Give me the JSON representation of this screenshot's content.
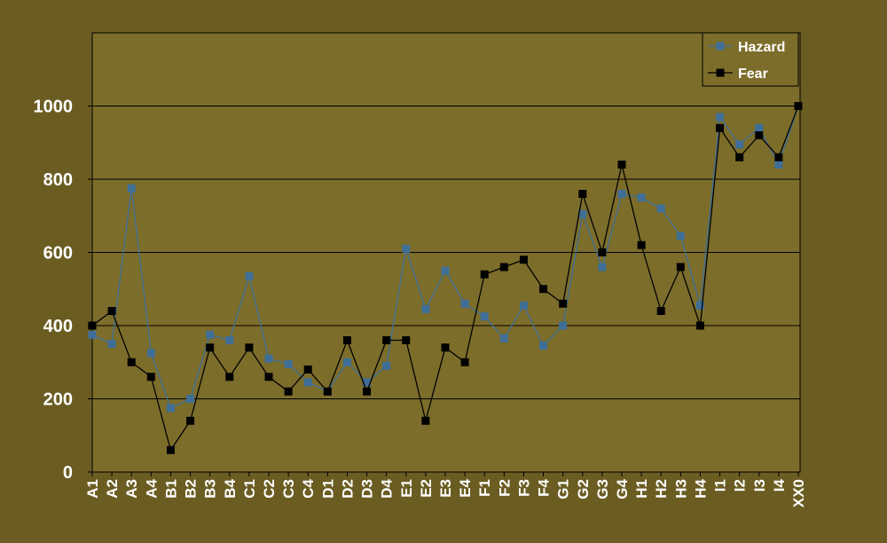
{
  "chart_data": {
    "type": "line",
    "categories": [
      "A1",
      "A2",
      "A3",
      "A4",
      "B1",
      "B2",
      "B3",
      "B4",
      "C1",
      "C2",
      "C3",
      "C4",
      "D1",
      "D2",
      "D3",
      "D4",
      "E1",
      "E2",
      "E3",
      "E4",
      "F1",
      "F2",
      "F3",
      "F4",
      "G1",
      "G2",
      "G3",
      "G4",
      "H1",
      "H2",
      "H3",
      "H4",
      "I1",
      "I2",
      "I3",
      "I4",
      "XX0"
    ],
    "series": [
      {
        "name": "Hazard",
        "color": "#3f6f98",
        "values": [
          375,
          350,
          775,
          325,
          175,
          200,
          375,
          360,
          535,
          310,
          295,
          245,
          220,
          300,
          245,
          290,
          610,
          445,
          550,
          460,
          425,
          365,
          455,
          345,
          400,
          705,
          560,
          760,
          750,
          720,
          645,
          455,
          970,
          895,
          940,
          840,
          1000
        ]
      },
      {
        "name": "Fear",
        "color": "#000000",
        "values": [
          400,
          440,
          300,
          260,
          60,
          140,
          340,
          260,
          340,
          260,
          220,
          280,
          220,
          360,
          220,
          360,
          360,
          140,
          340,
          300,
          540,
          560,
          580,
          500,
          460,
          760,
          600,
          840,
          620,
          440,
          560,
          400,
          940,
          860,
          920,
          860,
          1000
        ]
      }
    ],
    "ylim": [
      0,
      1200
    ],
    "yticks": [
      0,
      200,
      400,
      600,
      800,
      1000
    ],
    "grid": true,
    "legend": "top-right"
  }
}
